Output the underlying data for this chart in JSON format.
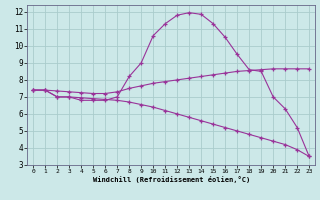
{
  "xlabel": "Windchill (Refroidissement éolien,°C)",
  "ylabel": "",
  "bg_color": "#cce8e8",
  "grid_color": "#aacccc",
  "line_color": "#993399",
  "xlim": [
    -0.5,
    23.5
  ],
  "ylim": [
    3,
    12.4
  ],
  "xticks": [
    0,
    1,
    2,
    3,
    4,
    5,
    6,
    7,
    8,
    9,
    10,
    11,
    12,
    13,
    14,
    15,
    16,
    17,
    18,
    19,
    20,
    21,
    22,
    23
  ],
  "yticks": [
    3,
    4,
    5,
    6,
    7,
    8,
    9,
    10,
    11,
    12
  ],
  "line1_x": [
    0,
    1,
    2,
    3,
    4,
    5,
    6,
    7,
    8,
    9,
    10,
    11,
    12,
    13,
    14,
    15,
    16,
    17,
    18,
    19,
    20,
    21,
    22,
    23
  ],
  "line1_y": [
    7.4,
    7.4,
    7.0,
    7.0,
    6.8,
    6.8,
    6.8,
    7.0,
    8.2,
    9.0,
    10.6,
    11.3,
    11.8,
    11.95,
    11.85,
    11.3,
    10.5,
    9.5,
    8.6,
    8.5,
    7.0,
    6.3,
    5.2,
    3.5
  ],
  "line2_x": [
    0,
    1,
    2,
    3,
    4,
    5,
    6,
    7,
    8,
    9,
    10,
    11,
    12,
    13,
    14,
    15,
    16,
    17,
    18,
    19,
    20,
    21,
    22,
    23
  ],
  "line2_y": [
    7.4,
    7.4,
    7.35,
    7.3,
    7.25,
    7.2,
    7.2,
    7.3,
    7.5,
    7.65,
    7.8,
    7.9,
    8.0,
    8.1,
    8.2,
    8.3,
    8.4,
    8.5,
    8.55,
    8.6,
    8.65,
    8.65,
    8.65,
    8.65
  ],
  "line3_x": [
    0,
    1,
    2,
    3,
    4,
    5,
    6,
    7,
    8,
    9,
    10,
    11,
    12,
    13,
    14,
    15,
    16,
    17,
    18,
    19,
    20,
    21,
    22,
    23
  ],
  "line3_y": [
    7.4,
    7.4,
    7.0,
    7.0,
    6.95,
    6.9,
    6.85,
    6.8,
    6.7,
    6.55,
    6.4,
    6.2,
    6.0,
    5.8,
    5.6,
    5.4,
    5.2,
    5.0,
    4.8,
    4.6,
    4.4,
    4.2,
    3.9,
    3.5
  ]
}
